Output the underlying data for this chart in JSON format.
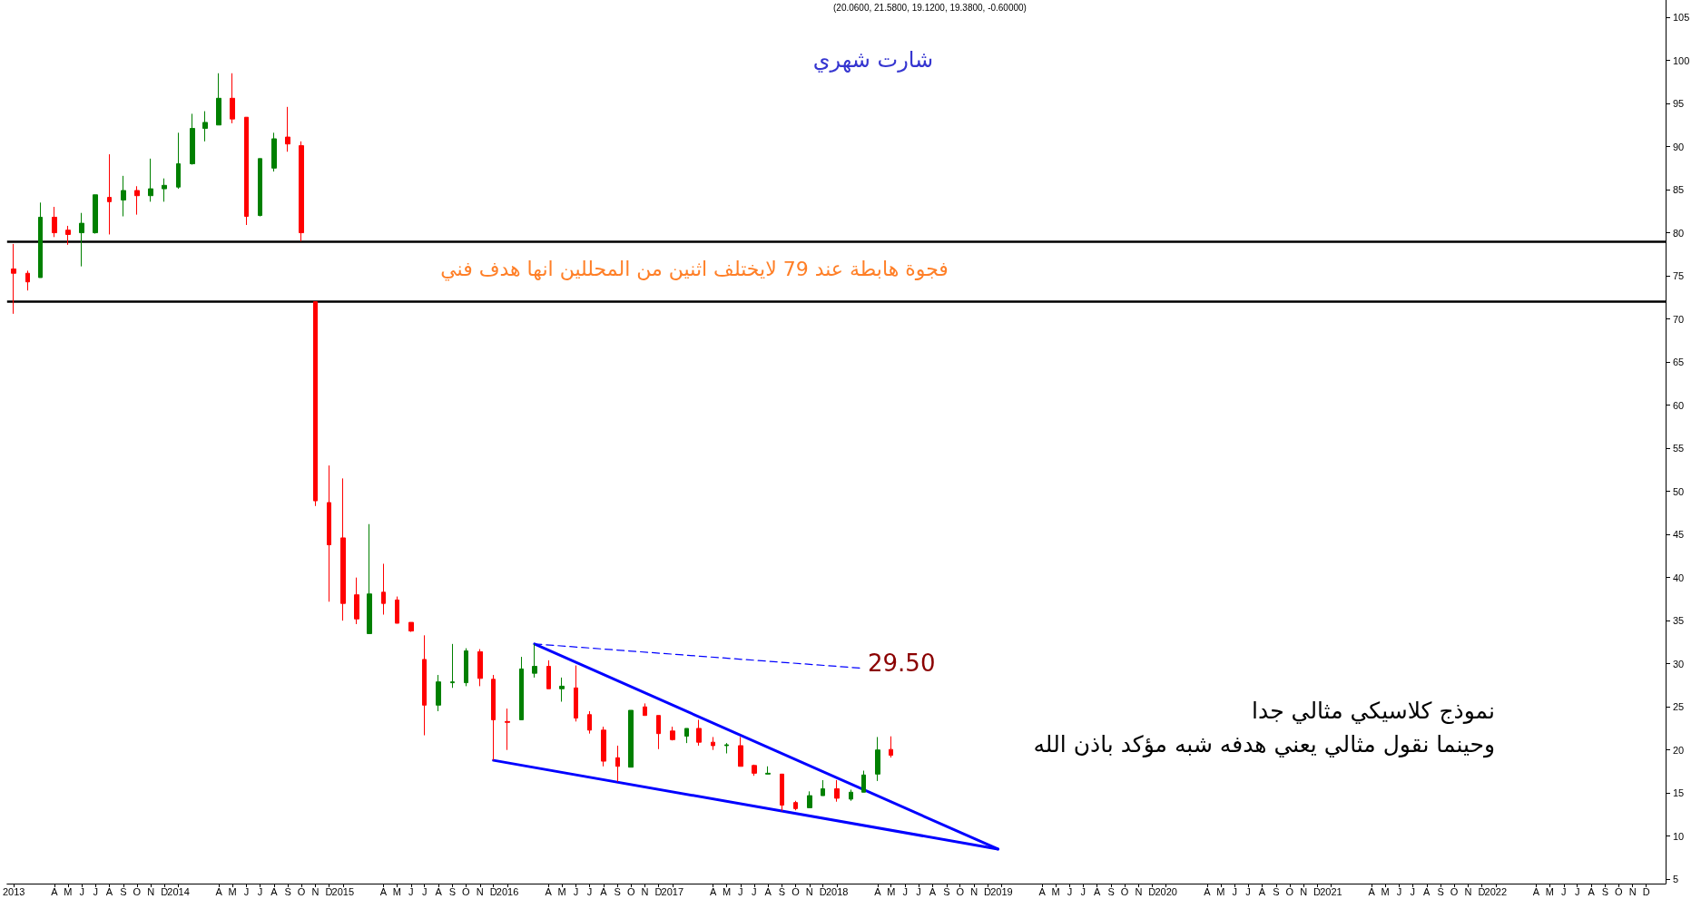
{
  "chart_data": {
    "type": "candlestick",
    "title": "شارت شهري",
    "subtitle": "(20.0600, 21.5800, 19.1200, 19.3800, -0.60000)",
    "annotations": [
      "فجوة هابطة عند 79 لايختلف اثنين من المحللين انها هدف فني",
      "29.50",
      "نموذج كلاسيكي مثالي جدا",
      "وحينما نقول مثالي يعني هدفه شبه مؤكد باذن الله"
    ],
    "xlim": [
      "2012-12-17",
      "2023-01-13"
    ],
    "xticks": [
      {
        "value": "2013-01",
        "label": "2013"
      },
      {
        "value": "2013-04",
        "label": "A"
      },
      {
        "value": "2013-05",
        "label": "M"
      },
      {
        "value": "2013-06",
        "label": "J"
      },
      {
        "value": "2013-07",
        "label": "J"
      },
      {
        "value": "2013-08",
        "label": "A"
      },
      {
        "value": "2013-09",
        "label": "S"
      },
      {
        "value": "2013-10",
        "label": "O"
      },
      {
        "value": "2013-11",
        "label": "N"
      },
      {
        "value": "2013-12",
        "label": "D"
      },
      {
        "value": "2014-01",
        "label": "2014"
      },
      {
        "value": "2014-04",
        "label": "A"
      },
      {
        "value": "2014-05",
        "label": "M"
      },
      {
        "value": "2014-06",
        "label": "J"
      },
      {
        "value": "2014-07",
        "label": "J"
      },
      {
        "value": "2014-08",
        "label": "A"
      },
      {
        "value": "2014-09",
        "label": "S"
      },
      {
        "value": "2014-10",
        "label": "O"
      },
      {
        "value": "2014-11",
        "label": "N"
      },
      {
        "value": "2014-12",
        "label": "D"
      },
      {
        "value": "2015-01",
        "label": "2015"
      },
      {
        "value": "2015-04",
        "label": "A"
      },
      {
        "value": "2015-05",
        "label": "M"
      },
      {
        "value": "2015-06",
        "label": "J"
      },
      {
        "value": "2015-07",
        "label": "J"
      },
      {
        "value": "2015-08",
        "label": "A"
      },
      {
        "value": "2015-09",
        "label": "S"
      },
      {
        "value": "2015-10",
        "label": "O"
      },
      {
        "value": "2015-11",
        "label": "N"
      },
      {
        "value": "2015-12",
        "label": "D"
      },
      {
        "value": "2016-01",
        "label": "2016"
      },
      {
        "value": "2016-04",
        "label": "A"
      },
      {
        "value": "2016-05",
        "label": "M"
      },
      {
        "value": "2016-06",
        "label": "J"
      },
      {
        "value": "2016-07",
        "label": "J"
      },
      {
        "value": "2016-08",
        "label": "A"
      },
      {
        "value": "2016-09",
        "label": "S"
      },
      {
        "value": "2016-10",
        "label": "O"
      },
      {
        "value": "2016-11",
        "label": "N"
      },
      {
        "value": "2016-12",
        "label": "D"
      },
      {
        "value": "2017-01",
        "label": "2017"
      },
      {
        "value": "2017-04",
        "label": "A"
      },
      {
        "value": "2017-05",
        "label": "M"
      },
      {
        "value": "2017-06",
        "label": "J"
      },
      {
        "value": "2017-07",
        "label": "J"
      },
      {
        "value": "2017-08",
        "label": "A"
      },
      {
        "value": "2017-09",
        "label": "S"
      },
      {
        "value": "2017-10",
        "label": "O"
      },
      {
        "value": "2017-11",
        "label": "N"
      },
      {
        "value": "2017-12",
        "label": "D"
      },
      {
        "value": "2018-01",
        "label": "2018"
      },
      {
        "value": "2018-04",
        "label": "A"
      },
      {
        "value": "2018-05",
        "label": "M"
      },
      {
        "value": "2018-06",
        "label": "J"
      },
      {
        "value": "2018-07",
        "label": "J"
      },
      {
        "value": "2018-08",
        "label": "A"
      },
      {
        "value": "2018-09",
        "label": "S"
      },
      {
        "value": "2018-10",
        "label": "O"
      },
      {
        "value": "2018-11",
        "label": "N"
      },
      {
        "value": "2018-12",
        "label": "D"
      },
      {
        "value": "2019-01",
        "label": "2019"
      },
      {
        "value": "2019-04",
        "label": "A"
      },
      {
        "value": "2019-05",
        "label": "M"
      },
      {
        "value": "2019-06",
        "label": "J"
      },
      {
        "value": "2019-07",
        "label": "J"
      },
      {
        "value": "2019-08",
        "label": "A"
      },
      {
        "value": "2019-09",
        "label": "S"
      },
      {
        "value": "2019-10",
        "label": "O"
      },
      {
        "value": "2019-11",
        "label": "N"
      },
      {
        "value": "2019-12",
        "label": "D"
      },
      {
        "value": "2020-01",
        "label": "2020"
      },
      {
        "value": "2020-04",
        "label": "A"
      },
      {
        "value": "2020-05",
        "label": "M"
      },
      {
        "value": "2020-06",
        "label": "J"
      },
      {
        "value": "2020-07",
        "label": "J"
      },
      {
        "value": "2020-08",
        "label": "A"
      },
      {
        "value": "2020-09",
        "label": "S"
      },
      {
        "value": "2020-10",
        "label": "O"
      },
      {
        "value": "2020-11",
        "label": "N"
      },
      {
        "value": "2020-12",
        "label": "D"
      },
      {
        "value": "2021-01",
        "label": "2021"
      },
      {
        "value": "2021-04",
        "label": "A"
      },
      {
        "value": "2021-05",
        "label": "M"
      },
      {
        "value": "2021-06",
        "label": "J"
      },
      {
        "value": "2021-07",
        "label": "J"
      },
      {
        "value": "2021-08",
        "label": "A"
      },
      {
        "value": "2021-09",
        "label": "S"
      },
      {
        "value": "2021-10",
        "label": "O"
      },
      {
        "value": "2021-11",
        "label": "N"
      },
      {
        "value": "2021-12",
        "label": "D"
      },
      {
        "value": "2022-01",
        "label": "2022"
      },
      {
        "value": "2022-04",
        "label": "A"
      },
      {
        "value": "2022-05",
        "label": "M"
      },
      {
        "value": "2022-06",
        "label": "J"
      },
      {
        "value": "2022-07",
        "label": "J"
      },
      {
        "value": "2022-08",
        "label": "A"
      },
      {
        "value": "2022-09",
        "label": "S"
      },
      {
        "value": "2022-10",
        "label": "O"
      },
      {
        "value": "2022-11",
        "label": "N"
      },
      {
        "value": "2022-12",
        "label": "D"
      }
    ],
    "ylim": [
      4.5,
      107
    ],
    "yticks": [
      5,
      10,
      15,
      20,
      25,
      30,
      35,
      40,
      45,
      50,
      55,
      60,
      65,
      70,
      75,
      80,
      85,
      90,
      95,
      100,
      105
    ],
    "grid": false,
    "marker": "none",
    "ref_lines": [
      {
        "axis": "y",
        "value": 79,
        "color": "#000000"
      },
      {
        "axis": "y",
        "value": 72,
        "color": "#000000"
      }
    ],
    "series": [
      {
        "x": [
          "2013-01",
          "2013-02",
          "2013-03",
          "2013-04",
          "2013-05",
          "2013-06",
          "2013-07",
          "2013-08",
          "2013-09",
          "2013-10",
          "2013-11",
          "2013-12",
          "2014-01",
          "2014-02",
          "2014-03",
          "2014-04",
          "2014-05",
          "2014-06",
          "2014-07",
          "2014-08",
          "2014-09",
          "2014-10",
          "2014-11",
          "2014-12",
          "2015-01",
          "2015-02",
          "2015-03",
          "2015-04",
          "2015-05",
          "2015-06",
          "2015-07",
          "2015-08",
          "2015-09",
          "2015-10",
          "2015-11",
          "2015-12",
          "2016-01",
          "2016-02",
          "2016-03",
          "2016-04",
          "2016-05",
          "2016-06",
          "2016-07",
          "2016-08",
          "2016-09",
          "2016-10",
          "2016-11",
          "2016-12",
          "2017-01",
          "2017-02",
          "2017-03",
          "2017-04",
          "2017-05",
          "2017-06",
          "2017-07",
          "2017-08",
          "2017-09",
          "2017-10",
          "2017-11",
          "2017-12",
          "2018-01",
          "2018-02",
          "2018-03",
          "2018-04",
          "2018-05"
        ],
        "ohlc": [
          [
            75.8,
            78.7,
            70.6,
            75.3
          ],
          [
            75.3,
            75.6,
            73.3,
            74.3
          ],
          [
            74.8,
            83.5,
            74.8,
            81.8
          ],
          [
            81.8,
            83.0,
            79.5,
            80.0
          ],
          [
            80.3,
            80.8,
            78.6,
            79.8
          ],
          [
            80.0,
            82.3,
            76.1,
            81.1
          ],
          [
            80.0,
            84.4,
            79.9,
            84.4
          ],
          [
            84.1,
            89.1,
            79.8,
            83.6
          ],
          [
            83.8,
            86.6,
            81.9,
            84.9
          ],
          [
            84.9,
            85.4,
            82.1,
            84.3
          ],
          [
            84.3,
            88.6,
            83.6,
            85.1
          ],
          [
            85.1,
            86.3,
            83.6,
            85.5
          ],
          [
            85.3,
            91.6,
            85.1,
            88.0
          ],
          [
            88.0,
            93.8,
            87.9,
            92.1
          ],
          [
            92.1,
            94.1,
            90.6,
            92.8
          ],
          [
            92.5,
            98.5,
            92.5,
            95.6
          ],
          [
            95.6,
            98.5,
            92.7,
            93.2
          ],
          [
            93.4,
            93.4,
            80.9,
            81.9
          ],
          [
            82.0,
            88.6,
            81.9,
            88.6
          ],
          [
            87.5,
            91.6,
            87.1,
            90.9
          ],
          [
            91.1,
            94.6,
            89.4,
            90.3
          ],
          [
            90.1,
            90.6,
            79.0,
            80.0
          ],
          [
            72.0,
            72.0,
            48.3,
            48.9
          ],
          [
            48.7,
            53.0,
            37.2,
            43.8
          ],
          [
            44.6,
            51.5,
            35.0,
            37.0
          ],
          [
            38.0,
            40.0,
            34.6,
            35.2
          ],
          [
            33.5,
            46.2,
            33.5,
            38.1
          ],
          [
            38.3,
            41.6,
            35.7,
            37.0
          ],
          [
            37.4,
            37.8,
            34.7,
            34.7
          ],
          [
            34.8,
            34.8,
            33.7,
            33.8
          ],
          [
            30.5,
            33.3,
            21.7,
            25.2
          ],
          [
            25.2,
            28.7,
            24.5,
            27.9
          ],
          [
            27.8,
            32.3,
            27.2,
            27.9
          ],
          [
            27.8,
            31.8,
            27.4,
            31.5
          ],
          [
            31.4,
            31.7,
            27.4,
            28.3
          ],
          [
            28.2,
            28.7,
            18.8,
            23.5
          ],
          [
            23.3,
            24.8,
            20.0,
            23.2
          ],
          [
            23.5,
            30.8,
            23.5,
            29.4
          ],
          [
            28.9,
            32.3,
            28.4,
            29.7
          ],
          [
            29.7,
            30.4,
            27.1,
            27.1
          ],
          [
            27.1,
            28.4,
            25.6,
            27.4
          ],
          [
            27.2,
            29.8,
            23.3,
            23.7
          ],
          [
            24.1,
            24.5,
            21.9,
            22.3
          ],
          [
            22.3,
            22.7,
            18.1,
            18.7
          ],
          [
            19.1,
            20.5,
            16.3,
            18.1
          ],
          [
            18.0,
            24.6,
            18.0,
            24.6
          ],
          [
            25.0,
            25.4,
            24.0,
            24.0
          ],
          [
            24.0,
            24.0,
            20.1,
            21.9
          ],
          [
            22.2,
            22.7,
            21.1,
            21.2
          ],
          [
            21.6,
            22.5,
            20.8,
            22.5
          ],
          [
            22.5,
            23.5,
            20.5,
            20.9
          ],
          [
            20.9,
            21.5,
            20.0,
            20.5
          ],
          [
            20.5,
            20.8,
            19.6,
            20.6
          ],
          [
            20.5,
            21.5,
            18.1,
            18.1
          ],
          [
            18.2,
            18.3,
            17.0,
            17.3
          ],
          [
            17.2,
            18.1,
            17.2,
            17.3
          ],
          [
            17.2,
            17.2,
            12.9,
            13.6
          ],
          [
            13.9,
            14.1,
            13.0,
            13.2
          ],
          [
            13.3,
            15.2,
            13.3,
            14.7
          ],
          [
            14.7,
            16.5,
            14.7,
            15.5
          ],
          [
            15.5,
            16.5,
            14.0,
            14.4
          ],
          [
            14.3,
            15.4,
            14.1,
            15.1
          ],
          [
            15.1,
            17.6,
            15.1,
            17.1
          ],
          [
            17.2,
            21.5,
            16.4,
            20.0
          ],
          [
            20.06,
            21.58,
            19.12,
            19.38
          ]
        ],
        "colors": [
          "#ff0000",
          "#ff0000",
          "#008000",
          "#ff0000",
          "#ff0000",
          "#008000",
          "#008000",
          "#ff0000",
          "#008000",
          "#ff0000",
          "#008000",
          "#008000",
          "#008000",
          "#008000",
          "#008000",
          "#008000",
          "#ff0000",
          "#ff0000",
          "#008000",
          "#008000",
          "#ff0000",
          "#ff0000",
          "#ff0000",
          "#ff0000",
          "#ff0000",
          "#ff0000",
          "#008000",
          "#ff0000",
          "#ff0000",
          "#ff0000",
          "#ff0000",
          "#008000",
          "#008000",
          "#008000",
          "#ff0000",
          "#ff0000",
          "#ff0000",
          "#008000",
          "#008000",
          "#ff0000",
          "#008000",
          "#ff0000",
          "#ff0000",
          "#ff0000",
          "#ff0000",
          "#008000",
          "#ff0000",
          "#ff0000",
          "#ff0000",
          "#008000",
          "#ff0000",
          "#ff0000",
          "#008000",
          "#ff0000",
          "#ff0000",
          "#008000",
          "#ff0000",
          "#ff0000",
          "#008000",
          "#008000",
          "#ff0000",
          "#008000",
          "#008000",
          "#008000",
          "#ff0000"
        ]
      },
      {
        "type": "line",
        "x": [
          "2016-03",
          "2018-12-24"
        ],
        "values": [
          32.3,
          8.5
        ],
        "color": "#0000ff",
        "line_style": "solid"
      },
      {
        "type": "line",
        "x": [
          "2015-12",
          "2018-12-24"
        ],
        "values": [
          18.8,
          8.5
        ],
        "color": "#0000ff",
        "line_style": "solid"
      },
      {
        "type": "line",
        "x": [
          "2016-03",
          "2018-02-21"
        ],
        "values": [
          32.3,
          29.5
        ],
        "color": "#0000ff",
        "line_style": "dashed"
      }
    ]
  }
}
